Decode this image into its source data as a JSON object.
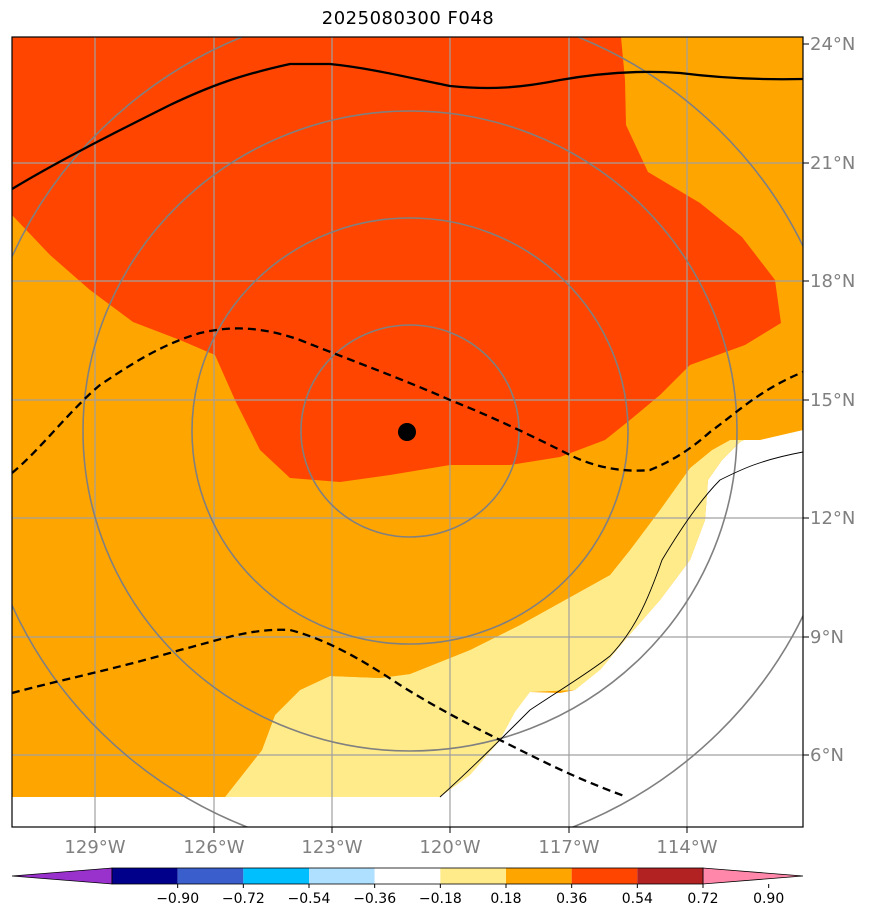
{
  "title": "2025080300 F048",
  "map": {
    "extent": {
      "lon_min": -131,
      "lon_max": -111.5,
      "lat_min": 4.5,
      "lat_max": 24
    },
    "lon_ticks": [
      {
        "lon": -129,
        "label": "129°W"
      },
      {
        "lon": -126,
        "label": "126°W"
      },
      {
        "lon": -123,
        "label": "123°W"
      },
      {
        "lon": -120,
        "label": "120°W"
      },
      {
        "lon": -117,
        "label": "117°W"
      },
      {
        "lon": -114,
        "label": "114°W"
      }
    ],
    "lat_ticks": [
      {
        "lat": 24,
        "label": "24°N"
      },
      {
        "lat": 21,
        "label": "21°N"
      },
      {
        "lat": 18,
        "label": "18°N"
      },
      {
        "lat": 15,
        "label": "15°N"
      },
      {
        "lat": 12,
        "label": "12°N"
      },
      {
        "lat": 9,
        "label": "9°N"
      },
      {
        "lat": 6,
        "label": "6°N"
      }
    ],
    "storm_center": {
      "lon": -121.1,
      "lat": 14.2
    },
    "range_rings_deg": [
      2.75,
      5.5,
      8.25,
      11.0
    ],
    "colors": {
      "light_yellow": "#ffeb8a",
      "orange": "#ffa500",
      "red_orange": "#ff4500",
      "grid": "#a0a0a0",
      "ring": "#808080"
    }
  },
  "colorbar": {
    "labels": [
      "−0.90",
      "−0.72",
      "−0.54",
      "−0.36",
      "−0.18",
      "0.18",
      "0.36",
      "0.54",
      "0.72",
      "0.90"
    ],
    "under_color": "#9932cc",
    "over_color": "#ff88aa",
    "colors": [
      "#00008b",
      "#3a5fcd",
      "#00bfff",
      "#b0e0ff",
      "#ffffff",
      "#ffeb8a",
      "#ffa500",
      "#ff4500",
      "#b22222"
    ]
  }
}
